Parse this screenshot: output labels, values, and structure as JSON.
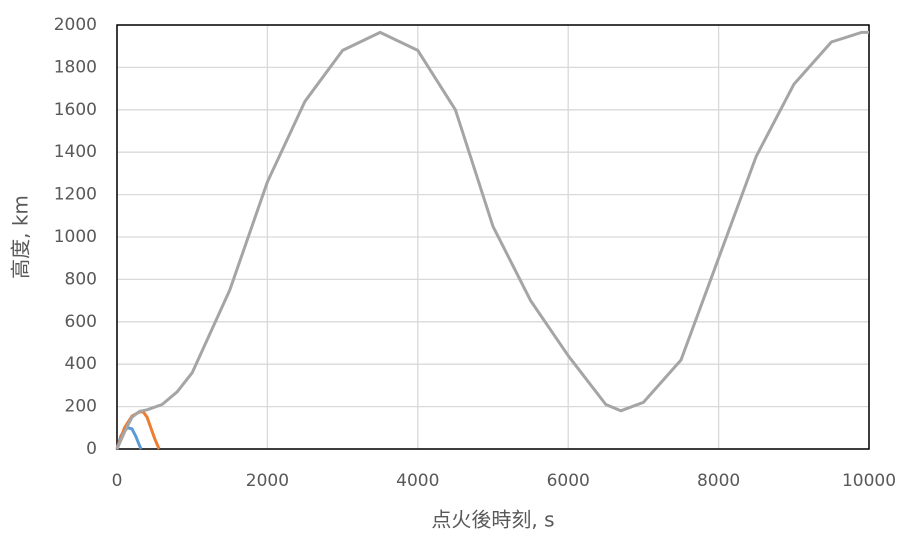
{
  "chart_data": {
    "type": "line",
    "x_label": "点火後時刻, s",
    "y_label": "高度, km",
    "xlim": [
      0,
      10000
    ],
    "xticks": [
      0,
      2000,
      4000,
      6000,
      8000,
      10000
    ],
    "ylim": [
      0,
      2000
    ],
    "yticks": [
      0,
      200,
      400,
      600,
      800,
      1000,
      1200,
      1400,
      1600,
      1800,
      2000
    ],
    "grid": true,
    "series": [
      {
        "color": "#5b9bd5",
        "x": [
          0,
          50,
          100,
          150,
          200,
          250,
          300,
          320
        ],
        "values": [
          0,
          60,
          90,
          100,
          95,
          60,
          15,
          0
        ]
      },
      {
        "color": "#ed7d31",
        "x": [
          0,
          100,
          200,
          300,
          350,
          400,
          450,
          500,
          560
        ],
        "values": [
          0,
          100,
          155,
          175,
          175,
          150,
          100,
          50,
          0
        ]
      },
      {
        "color": "#a5a5a5",
        "x": [
          0,
          100,
          200,
          300,
          400,
          600,
          800,
          1000,
          1500,
          2000,
          2500,
          3000,
          3500,
          4000,
          4500,
          5000,
          5500,
          6000,
          6500,
          6700,
          7000,
          7500,
          8000,
          8500,
          9000,
          9500,
          9900,
          10000
        ],
        "values": [
          0,
          80,
          150,
          178,
          185,
          210,
          270,
          360,
          750,
          1260,
          1640,
          1880,
          1965,
          1880,
          1600,
          1050,
          700,
          440,
          210,
          180,
          220,
          420,
          900,
          1380,
          1720,
          1920,
          1965,
          1965
        ]
      }
    ]
  }
}
